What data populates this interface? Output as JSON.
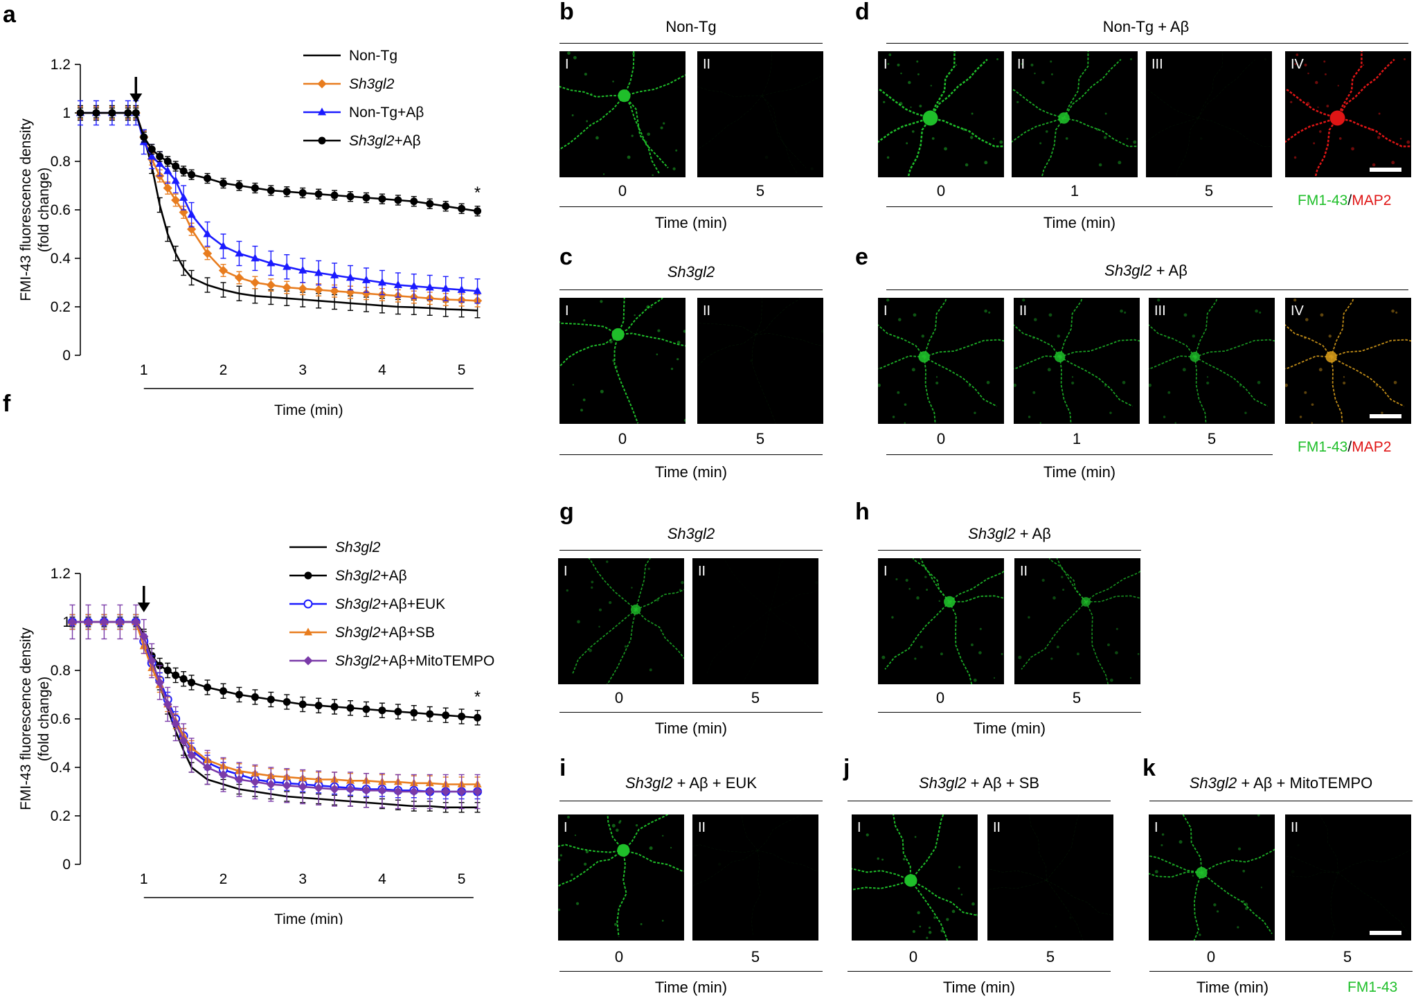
{
  "panels": {
    "a": {
      "label": "a"
    },
    "f": {
      "label": "f"
    },
    "b": {
      "label": "b",
      "title": "Non-Tg",
      "images": [
        "I",
        "II"
      ],
      "times": [
        "0",
        "5"
      ],
      "time_label": "Time (min)"
    },
    "c": {
      "label": "c",
      "title": "Sh3gl2",
      "images": [
        "I",
        "II"
      ],
      "times": [
        "0",
        "5"
      ],
      "time_label": "Time (min)"
    },
    "d": {
      "label": "d",
      "title": "Non-Tg + Aβ",
      "images": [
        "I",
        "II",
        "III",
        "IV"
      ],
      "times": [
        "0",
        "1",
        "5"
      ],
      "time_label": "Time (min)",
      "stain": {
        "green": "FM1-43",
        "sep": "/",
        "red": "MAP2"
      }
    },
    "e": {
      "label": "e",
      "title_italic": "Sh3gl2",
      "title_rest": " + Aβ",
      "images": [
        "I",
        "II",
        "III",
        "IV"
      ],
      "times": [
        "0",
        "1",
        "5"
      ],
      "time_label": "Time (min)",
      "stain": {
        "green": "FM1-43",
        "sep": "/",
        "red": "MAP2"
      }
    },
    "g": {
      "label": "g",
      "title": "Sh3gl2",
      "images": [
        "I",
        "II"
      ],
      "times": [
        "0",
        "5"
      ],
      "time_label": "Time (min)"
    },
    "h": {
      "label": "h",
      "title_italic": "Sh3gl2",
      "title_rest": " + Aβ",
      "images": [
        "I",
        "II"
      ],
      "times": [
        "0",
        "5"
      ],
      "time_label": "Time (min)"
    },
    "i": {
      "label": "i",
      "title_italic": "Sh3gl2",
      "title_rest": " + Aβ + EUK",
      "images": [
        "I",
        "II"
      ],
      "times": [
        "0",
        "5"
      ],
      "time_label": "Time (min)"
    },
    "j": {
      "label": "j",
      "title_italic": "Sh3gl2",
      "title_rest": " + Aβ + SB",
      "images": [
        "I",
        "II"
      ],
      "times": [
        "0",
        "5"
      ],
      "time_label": "Time (min)"
    },
    "k": {
      "label": "k",
      "title_italic": "Sh3gl2",
      "title_rest": " + Aβ + MitoTEMPO",
      "images": [
        "I",
        "II"
      ],
      "times": [
        "0",
        "5"
      ],
      "time_label": "Time (min)",
      "stain": {
        "green": "FM1-43"
      }
    }
  },
  "colors": {
    "black": "#000000",
    "orange": "#e87c1e",
    "blue": "#1a1aff",
    "purple": "#7a3aa8",
    "fluor_green": "#1fbf2a",
    "map2_red": "#e01515"
  },
  "chart_data": [
    {
      "id": "a",
      "type": "line",
      "xlabel": "Time (min)",
      "ylabel": "FMI-43 fluorescence density (fold change)",
      "ylim": [
        0,
        1.2
      ],
      "yticks": [
        "0",
        "0.2",
        "0.4",
        "0.6",
        "0.8",
        "1",
        "1.2"
      ],
      "xticks": [
        "1",
        "2",
        "3",
        "4",
        "5"
      ],
      "xlim": [
        0.2,
        5.5
      ],
      "annotation": "*",
      "arrow_at_x": 0.9,
      "grid": false,
      "legend_position": "top-right",
      "series": [
        {
          "name": "Non-Tg",
          "italic": false,
          "marker": "none",
          "color": "#000000",
          "x": [
            0.2,
            0.4,
            0.6,
            0.8,
            0.9,
            1.0,
            1.1,
            1.2,
            1.3,
            1.4,
            1.5,
            1.6,
            1.8,
            2.0,
            2.2,
            2.4,
            2.6,
            2.8,
            3.0,
            3.2,
            3.4,
            3.6,
            3.8,
            4.0,
            4.2,
            4.4,
            4.6,
            4.8,
            5.0,
            5.2
          ],
          "y": [
            1.0,
            1.0,
            1.0,
            1.0,
            1.0,
            0.9,
            0.78,
            0.62,
            0.5,
            0.42,
            0.36,
            0.32,
            0.29,
            0.27,
            0.255,
            0.245,
            0.24,
            0.235,
            0.23,
            0.225,
            0.22,
            0.215,
            0.21,
            0.205,
            0.2,
            0.198,
            0.195,
            0.19,
            0.188,
            0.185
          ],
          "err": 0.03
        },
        {
          "name": "Sh3gl2",
          "italic": true,
          "marker": "diamond",
          "color": "#e87c1e",
          "x": [
            0.2,
            0.4,
            0.6,
            0.8,
            0.9,
            1.0,
            1.1,
            1.2,
            1.3,
            1.4,
            1.5,
            1.6,
            1.8,
            2.0,
            2.2,
            2.4,
            2.6,
            2.8,
            3.0,
            3.2,
            3.4,
            3.6,
            3.8,
            4.0,
            4.2,
            4.4,
            4.6,
            4.8,
            5.0,
            5.2
          ],
          "y": [
            1.0,
            1.0,
            1.0,
            1.0,
            1.0,
            0.9,
            0.81,
            0.74,
            0.69,
            0.64,
            0.59,
            0.52,
            0.42,
            0.35,
            0.32,
            0.3,
            0.29,
            0.28,
            0.275,
            0.27,
            0.265,
            0.26,
            0.255,
            0.25,
            0.245,
            0.24,
            0.235,
            0.23,
            0.228,
            0.225
          ],
          "err": 0.025
        },
        {
          "name": "Non-Tg+Aβ",
          "italic": false,
          "marker": "triangle",
          "color": "#1a1aff",
          "x": [
            0.2,
            0.4,
            0.6,
            0.8,
            0.9,
            1.0,
            1.1,
            1.2,
            1.3,
            1.4,
            1.5,
            1.6,
            1.8,
            2.0,
            2.2,
            2.4,
            2.6,
            2.8,
            3.0,
            3.2,
            3.4,
            3.6,
            3.8,
            4.0,
            4.2,
            4.4,
            4.6,
            4.8,
            5.0,
            5.2
          ],
          "y": [
            1.0,
            1.0,
            1.0,
            1.0,
            1.0,
            0.88,
            0.82,
            0.79,
            0.76,
            0.72,
            0.65,
            0.58,
            0.5,
            0.45,
            0.42,
            0.4,
            0.38,
            0.365,
            0.35,
            0.34,
            0.33,
            0.32,
            0.31,
            0.3,
            0.29,
            0.285,
            0.28,
            0.275,
            0.27,
            0.265
          ],
          "err": 0.05
        },
        {
          "name": "Sh3gl2+Aβ",
          "italic": true,
          "marker": "circle",
          "color": "#000000",
          "x": [
            0.2,
            0.4,
            0.6,
            0.8,
            0.9,
            1.0,
            1.1,
            1.2,
            1.3,
            1.4,
            1.5,
            1.6,
            1.8,
            2.0,
            2.2,
            2.4,
            2.6,
            2.8,
            3.0,
            3.2,
            3.4,
            3.6,
            3.8,
            4.0,
            4.2,
            4.4,
            4.6,
            4.8,
            5.0,
            5.2
          ],
          "y": [
            1.0,
            1.0,
            1.0,
            1.0,
            1.0,
            0.9,
            0.85,
            0.82,
            0.8,
            0.78,
            0.76,
            0.745,
            0.73,
            0.71,
            0.7,
            0.69,
            0.68,
            0.675,
            0.67,
            0.665,
            0.66,
            0.655,
            0.65,
            0.645,
            0.64,
            0.635,
            0.625,
            0.615,
            0.605,
            0.595
          ],
          "err": 0.02
        }
      ]
    },
    {
      "id": "f",
      "type": "line",
      "xlabel": "Time (min)",
      "ylabel": "FMI-43 fluorescence density (fold change)",
      "ylim": [
        0,
        1.2
      ],
      "yticks": [
        "0",
        "0.2",
        "0.4",
        "0.6",
        "0.8",
        "1",
        "1.2"
      ],
      "xticks": [
        "1",
        "2",
        "3",
        "4",
        "5"
      ],
      "xlim": [
        0.2,
        5.5
      ],
      "annotation": "*",
      "arrow_at_x": 1.0,
      "grid": false,
      "legend_position": "top-right",
      "series": [
        {
          "name": "Sh3gl2",
          "italic": true,
          "marker": "none",
          "color": "#000000",
          "x": [
            0.1,
            0.3,
            0.5,
            0.7,
            0.9,
            1.0,
            1.1,
            1.2,
            1.3,
            1.4,
            1.5,
            1.6,
            1.8,
            2.0,
            2.2,
            2.4,
            2.6,
            2.8,
            3.0,
            3.2,
            3.4,
            3.6,
            3.8,
            4.0,
            4.2,
            4.4,
            4.6,
            4.8,
            5.0,
            5.2
          ],
          "y": [
            1.0,
            1.0,
            1.0,
            1.0,
            1.0,
            0.95,
            0.85,
            0.74,
            0.64,
            0.55,
            0.47,
            0.4,
            0.35,
            0.33,
            0.31,
            0.3,
            0.29,
            0.28,
            0.275,
            0.27,
            0.265,
            0.26,
            0.255,
            0.25,
            0.245,
            0.24,
            0.24,
            0.235,
            0.235,
            0.235
          ],
          "err": 0.02
        },
        {
          "name": "Sh3gl2+Aβ",
          "italic": true,
          "marker": "circle",
          "color": "#000000",
          "x": [
            0.1,
            0.3,
            0.5,
            0.7,
            0.9,
            1.0,
            1.1,
            1.2,
            1.3,
            1.4,
            1.5,
            1.6,
            1.8,
            2.0,
            2.2,
            2.4,
            2.6,
            2.8,
            3.0,
            3.2,
            3.4,
            3.6,
            3.8,
            4.0,
            4.2,
            4.4,
            4.6,
            4.8,
            5.0,
            5.2
          ],
          "y": [
            1.0,
            1.0,
            1.0,
            1.0,
            1.0,
            0.93,
            0.86,
            0.82,
            0.8,
            0.78,
            0.765,
            0.75,
            0.73,
            0.715,
            0.7,
            0.69,
            0.68,
            0.67,
            0.66,
            0.655,
            0.65,
            0.645,
            0.64,
            0.635,
            0.63,
            0.625,
            0.62,
            0.615,
            0.61,
            0.605
          ],
          "err": 0.03
        },
        {
          "name": "Sh3gl2+Aβ+EUK",
          "italic": true,
          "marker": "open-circle",
          "color": "#1a1aff",
          "x": [
            0.1,
            0.3,
            0.5,
            0.7,
            0.9,
            1.0,
            1.1,
            1.2,
            1.3,
            1.4,
            1.5,
            1.6,
            1.8,
            2.0,
            2.2,
            2.4,
            2.6,
            2.8,
            3.0,
            3.2,
            3.4,
            3.6,
            3.8,
            4.0,
            4.2,
            4.4,
            4.6,
            4.8,
            5.0,
            5.2
          ],
          "y": [
            1.0,
            1.0,
            1.0,
            1.0,
            1.0,
            0.92,
            0.83,
            0.76,
            0.68,
            0.6,
            0.53,
            0.47,
            0.42,
            0.39,
            0.37,
            0.35,
            0.34,
            0.335,
            0.33,
            0.325,
            0.32,
            0.315,
            0.31,
            0.31,
            0.305,
            0.305,
            0.3,
            0.3,
            0.3,
            0.3
          ],
          "err": 0.03
        },
        {
          "name": "Sh3gl2+Aβ+SB",
          "italic": true,
          "marker": "triangle",
          "color": "#e87c1e",
          "x": [
            0.1,
            0.3,
            0.5,
            0.7,
            0.9,
            1.0,
            1.1,
            1.2,
            1.3,
            1.4,
            1.5,
            1.6,
            1.8,
            2.0,
            2.2,
            2.4,
            2.6,
            2.8,
            3.0,
            3.2,
            3.4,
            3.6,
            3.8,
            4.0,
            4.2,
            4.4,
            4.6,
            4.8,
            5.0,
            5.2
          ],
          "y": [
            1.0,
            1.0,
            1.0,
            1.0,
            1.0,
            0.9,
            0.81,
            0.74,
            0.66,
            0.59,
            0.53,
            0.48,
            0.43,
            0.405,
            0.385,
            0.375,
            0.365,
            0.36,
            0.355,
            0.35,
            0.35,
            0.345,
            0.345,
            0.34,
            0.34,
            0.335,
            0.335,
            0.33,
            0.33,
            0.33
          ],
          "err": 0.03
        },
        {
          "name": "Sh3gl2+Aβ+MitoTEMPO",
          "italic": true,
          "marker": "diamond",
          "color": "#7a3aa8",
          "x": [
            0.1,
            0.3,
            0.5,
            0.7,
            0.9,
            1.0,
            1.1,
            1.2,
            1.3,
            1.4,
            1.5,
            1.6,
            1.8,
            2.0,
            2.2,
            2.4,
            2.6,
            2.8,
            3.0,
            3.2,
            3.4,
            3.6,
            3.8,
            4.0,
            4.2,
            4.4,
            4.6,
            4.8,
            5.0,
            5.2
          ],
          "y": [
            1.0,
            1.0,
            1.0,
            1.0,
            1.0,
            0.94,
            0.84,
            0.75,
            0.66,
            0.58,
            0.51,
            0.45,
            0.4,
            0.37,
            0.35,
            0.34,
            0.33,
            0.325,
            0.32,
            0.315,
            0.31,
            0.31,
            0.305,
            0.305,
            0.3,
            0.3,
            0.3,
            0.3,
            0.3,
            0.3
          ],
          "err": 0.07
        }
      ]
    }
  ]
}
